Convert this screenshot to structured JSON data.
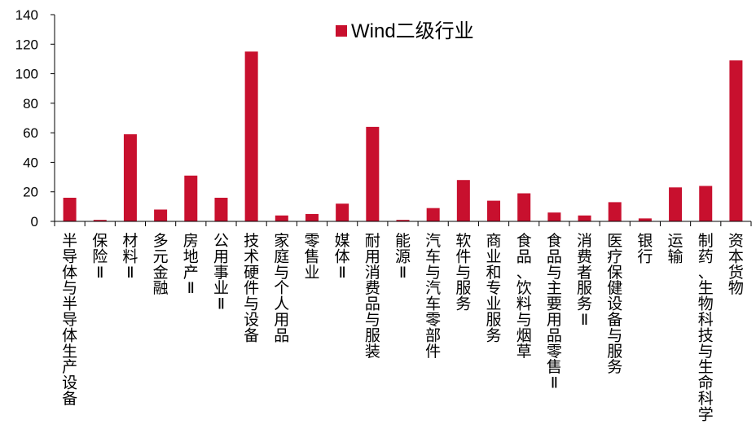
{
  "colors": {
    "bar": "#C8102E",
    "axis": "#000000"
  },
  "chart_data": {
    "type": "bar",
    "title": "",
    "xlabel": "",
    "ylabel": "",
    "ylim": [
      0,
      140
    ],
    "yticks": [
      "0",
      "20",
      "40",
      "60",
      "80",
      "100",
      "120",
      "140"
    ],
    "grid": false,
    "legend": {
      "position": "top-right"
    },
    "categories": [
      "半导体与半导体生产设备",
      "保险Ⅱ",
      "材料Ⅱ",
      "多元金融",
      "房地产Ⅱ",
      "公用事业Ⅱ",
      "技术硬件与设备",
      "家庭与个人用品",
      "零售业",
      "媒体Ⅱ",
      "耐用消费品与服装",
      "能源Ⅱ",
      "汽车与汽车零部件",
      "软件与服务",
      "商业和专业服务",
      "食品、饮料与烟草",
      "食品与主要用品零售Ⅱ",
      "消费者服务Ⅱ",
      "医疗保健设备与服务",
      "银行",
      "运输",
      "制药、生物科技与生命科学",
      "资本货物"
    ],
    "series": [
      {
        "name": "Wind二级行业",
        "values": [
          16,
          1,
          59,
          8,
          31,
          16,
          115,
          4,
          5,
          12,
          64,
          1,
          9,
          28,
          14,
          19,
          6,
          4,
          13,
          2,
          23,
          24,
          109
        ]
      }
    ]
  }
}
